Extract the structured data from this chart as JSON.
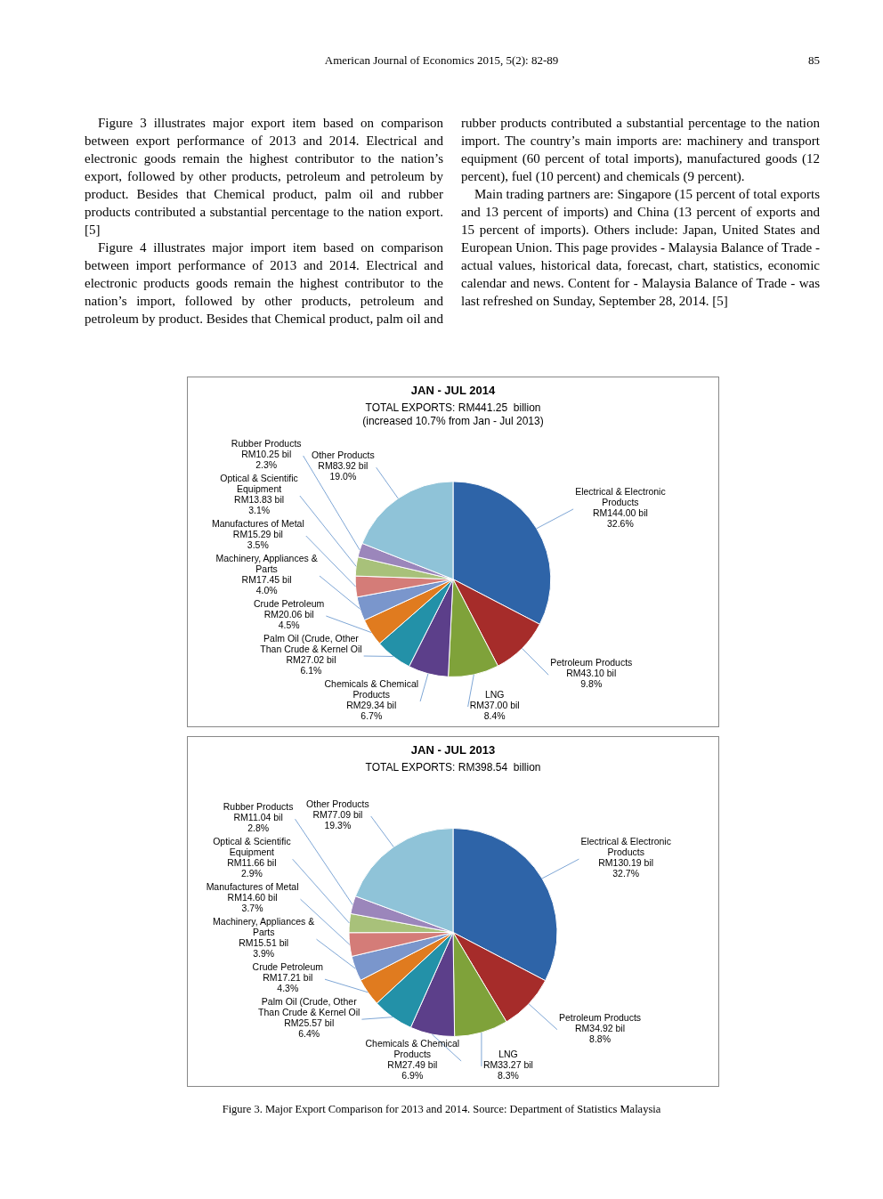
{
  "chart_data": [
    {
      "type": "other",
      "annotations": [
        "American Journal of Economics 2015, 5(2): 82-89",
        "85",
        "Figure 3 illustrates major export item based on comparison between export performance of 2013 and 2014. Electrical and electronic goods remain the highest contributor to the nation’s export, followed by other products, petroleum and petroleum by product. Besides that Chemical product, palm oil and rubber products contributed a substantial percentage to the nation export. [5]",
        "Figure 4 illustrates major import item based on comparison between import performance of 2013 and 2014. Electrical and electronic products goods remain the highest contributor to the nation’s import, followed by other products, petroleum and petroleum by product. Besides that Chemical product, palm oil and rubber products contributed a substantial percentage to the nation import. The country’s main imports are: machinery and transport equipment (60 percent of total imports), manufactured goods (12 percent), fuel (10 percent) and chemicals (9 percent).",
        "Main trading partners are: Singapore (15 percent of total exports and 13 percent of imports) and China (13 percent of exports and 15 percent of imports). Others include: Japan, United States and European Union. This page provides - Malaysia Balance of Trade - actual values, historical data, forecast, chart, statistics, economic calendar and news. Content for - Malaysia Balance of Trade - was last refreshed on Sunday, September 28, 2014. [5]"
      ]
    },
    {
      "type": "pie",
      "title": "JAN - JUL 2014",
      "subtitle": "TOTAL EXPORTS: RM441.25  billion\n(increased 10.7% from Jan - Jul 2013)",
      "legend": false,
      "categories": [
        "Electrical & Electronic Products",
        "Petroleum Products",
        "LNG",
        "Chemicals & Chemical Products",
        "Palm Oil (Crude, Other Than Crude & Kernel Oil",
        "Crude Petroleum",
        "Machinery, Appliances & Parts",
        "Manufactures of Metal",
        "Optical & Scientific Equipment",
        "Rubber Products",
        "Other Products"
      ],
      "values": [
        144.0,
        43.1,
        37.0,
        29.34,
        27.02,
        20.06,
        17.45,
        15.29,
        13.83,
        10.25,
        83.92
      ],
      "value_labels": [
        "RM144.00 bil\n32.6%",
        "RM43.10 bil\n9.8%",
        "RM37.00 bil\n8.4%",
        "RM29.34 bil\n6.7%",
        "RM27.02 bil\n6.1%",
        "RM20.06 bil\n4.5%",
        "RM17.45 bil\n4.0%",
        "RM15.29 bil\n3.5%",
        "RM13.83 bil\n3.1%",
        "RM10.25 bil\n2.3%",
        "RM83.92 bil\n19.0%"
      ],
      "colors": [
        "#2e64a8",
        "#a62c2a",
        "#7fa23a",
        "#5c3f8a",
        "#2391a8",
        "#e07b1f",
        "#7a96cc",
        "#d47c78",
        "#a8c17a",
        "#9b86bb",
        "#8fc3d8"
      ]
    },
    {
      "type": "pie",
      "title": "JAN - JUL 2013",
      "subtitle": "TOTAL EXPORTS: RM398.54  billion",
      "legend": false,
      "categories": [
        "Electrical & Electronic Products",
        "Petroleum Products",
        "LNG",
        "Chemicals & Chemical Products",
        "Palm Oil (Crude, Other Than Crude & Kernel Oil",
        "Crude Petroleum",
        "Machinery, Appliances & Parts",
        "Manufactures of Metal",
        "Optical & Scientific Equipment",
        "Rubber Products",
        "Other Products"
      ],
      "values": [
        130.19,
        34.92,
        33.27,
        27.49,
        25.57,
        17.21,
        15.51,
        14.6,
        11.66,
        11.04,
        77.09
      ],
      "value_labels": [
        "RM130.19 bil\n32.7%",
        "RM34.92 bil\n8.8%",
        "RM33.27 bil\n8.3%",
        "RM27.49 bil\n6.9%",
        "RM25.57 bil\n6.4%",
        "RM17.21 bil\n4.3%",
        "RM15.51 bil\n3.9%",
        "RM14.60 bil\n3.7%",
        "RM11.66 bil\n2.9%",
        "RM11.04 bil\n2.8%",
        "RM77.09 bil\n19.3%"
      ],
      "colors": [
        "#2e64a8",
        "#a62c2a",
        "#7fa23a",
        "#5c3f8a",
        "#2391a8",
        "#e07b1f",
        "#7a96cc",
        "#d47c78",
        "#a8c17a",
        "#9b86bb",
        "#8fc3d8"
      ],
      "annotations": [
        "Figure 3. Major Export Comparison for 2013 and 2014. Source: Department of Statistics Malaysia"
      ]
    }
  ]
}
